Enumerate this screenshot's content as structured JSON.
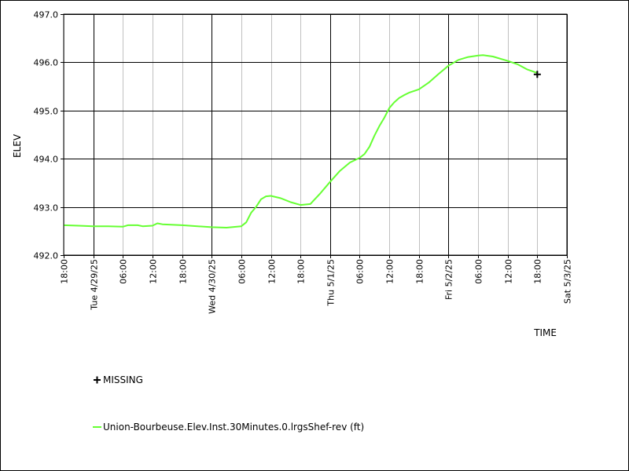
{
  "chart_data": {
    "type": "line",
    "xlabel": "TIME",
    "ylabel": "ELEV",
    "ylim": [
      492.0,
      497.0
    ],
    "y_ticks": [
      "492.0",
      "493.0",
      "494.0",
      "495.0",
      "496.0",
      "497.0"
    ],
    "x_range": [
      "2025-04-28T18:00",
      "2025-05-03T00:00"
    ],
    "x_ticks": [
      {
        "t": "2025-04-28T18:00",
        "label": "18:00",
        "major": false
      },
      {
        "t": "2025-04-29T00:00",
        "label": "Tue 4/29/25",
        "major": true
      },
      {
        "t": "2025-04-29T06:00",
        "label": "06:00",
        "major": false
      },
      {
        "t": "2025-04-29T12:00",
        "label": "12:00",
        "major": false
      },
      {
        "t": "2025-04-29T18:00",
        "label": "18:00",
        "major": false
      },
      {
        "t": "2025-04-30T00:00",
        "label": "Wed 4/30/25",
        "major": true
      },
      {
        "t": "2025-04-30T06:00",
        "label": "06:00",
        "major": false
      },
      {
        "t": "2025-04-30T12:00",
        "label": "12:00",
        "major": false
      },
      {
        "t": "2025-04-30T18:00",
        "label": "18:00",
        "major": false
      },
      {
        "t": "2025-05-01T00:00",
        "label": "Thu 5/1/25",
        "major": true
      },
      {
        "t": "2025-05-01T06:00",
        "label": "06:00",
        "major": false
      },
      {
        "t": "2025-05-01T12:00",
        "label": "12:00",
        "major": false
      },
      {
        "t": "2025-05-01T18:00",
        "label": "18:00",
        "major": false
      },
      {
        "t": "2025-05-02T00:00",
        "label": "Fri 5/2/25",
        "major": true
      },
      {
        "t": "2025-05-02T06:00",
        "label": "06:00",
        "major": false
      },
      {
        "t": "2025-05-02T12:00",
        "label": "12:00",
        "major": false
      },
      {
        "t": "2025-05-02T18:00",
        "label": "18:00",
        "major": false
      },
      {
        "t": "2025-05-03T00:00",
        "label": "Sat 5/3/25",
        "major": true
      }
    ],
    "series": [
      {
        "name": "Union-Bourbeuse.Elev.Inst.30Minutes.0.lrgsShef-rev (ft)",
        "color": "#66ff33",
        "points": [
          [
            "2025-04-28T18:00",
            492.62
          ],
          [
            "2025-04-28T21:00",
            492.61
          ],
          [
            "2025-04-29T00:00",
            492.6
          ],
          [
            "2025-04-29T03:00",
            492.6
          ],
          [
            "2025-04-29T06:00",
            492.59
          ],
          [
            "2025-04-29T07:00",
            492.62
          ],
          [
            "2025-04-29T09:00",
            492.62
          ],
          [
            "2025-04-29T10:00",
            492.6
          ],
          [
            "2025-04-29T12:00",
            492.61
          ],
          [
            "2025-04-29T13:00",
            492.66
          ],
          [
            "2025-04-29T14:00",
            492.64
          ],
          [
            "2025-04-29T18:00",
            492.62
          ],
          [
            "2025-04-30T00:00",
            492.58
          ],
          [
            "2025-04-30T03:00",
            492.57
          ],
          [
            "2025-04-30T06:00",
            492.6
          ],
          [
            "2025-04-30T07:00",
            492.68
          ],
          [
            "2025-04-30T08:00",
            492.88
          ],
          [
            "2025-04-30T09:00",
            493.0
          ],
          [
            "2025-04-30T10:00",
            493.16
          ],
          [
            "2025-04-30T11:00",
            493.22
          ],
          [
            "2025-04-30T12:00",
            493.23
          ],
          [
            "2025-04-30T14:00",
            493.18
          ],
          [
            "2025-04-30T16:00",
            493.1
          ],
          [
            "2025-04-30T18:00",
            493.04
          ],
          [
            "2025-04-30T20:00",
            493.06
          ],
          [
            "2025-04-30T22:00",
            493.28
          ],
          [
            "2025-05-01T00:00",
            493.52
          ],
          [
            "2025-05-01T02:00",
            493.75
          ],
          [
            "2025-05-01T04:00",
            493.92
          ],
          [
            "2025-05-01T06:00",
            494.02
          ],
          [
            "2025-05-01T07:00",
            494.1
          ],
          [
            "2025-05-01T08:00",
            494.25
          ],
          [
            "2025-05-01T09:00",
            494.48
          ],
          [
            "2025-05-01T10:00",
            494.68
          ],
          [
            "2025-05-01T11:00",
            494.85
          ],
          [
            "2025-05-01T12:00",
            495.05
          ],
          [
            "2025-05-01T13:00",
            495.17
          ],
          [
            "2025-05-01T14:00",
            495.26
          ],
          [
            "2025-05-01T15:00",
            495.32
          ],
          [
            "2025-05-01T16:00",
            495.37
          ],
          [
            "2025-05-01T18:00",
            495.44
          ],
          [
            "2025-05-01T20:00",
            495.58
          ],
          [
            "2025-05-01T22:00",
            495.76
          ],
          [
            "2025-05-02T00:00",
            495.93
          ],
          [
            "2025-05-02T02:00",
            496.05
          ],
          [
            "2025-05-02T04:00",
            496.11
          ],
          [
            "2025-05-02T06:00",
            496.14
          ],
          [
            "2025-05-02T07:00",
            496.15
          ],
          [
            "2025-05-02T09:00",
            496.12
          ],
          [
            "2025-05-02T12:00",
            496.03
          ],
          [
            "2025-05-02T14:00",
            495.96
          ],
          [
            "2025-05-02T16:00",
            495.85
          ],
          [
            "2025-05-02T18:00",
            495.78
          ]
        ]
      }
    ],
    "missing": {
      "name": "MISSING",
      "points": [
        [
          "2025-05-02T18:00",
          495.75
        ]
      ]
    },
    "grid": true,
    "legend_position": "bottom-left"
  }
}
